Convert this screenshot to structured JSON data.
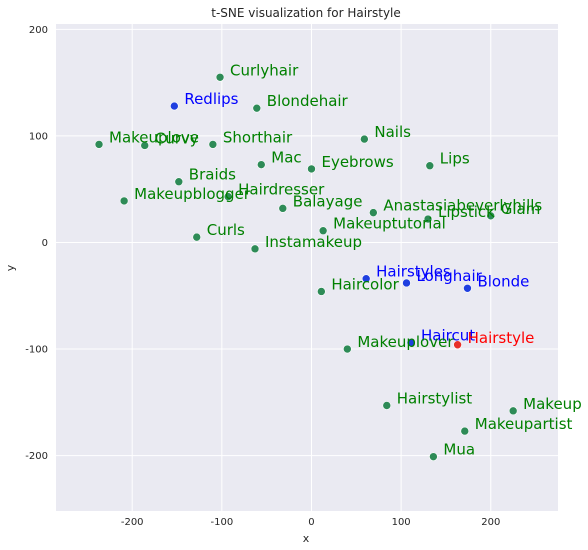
{
  "chart_data": {
    "type": "scatter",
    "title": "t-SNE visualization for Hairstyle",
    "xlabel": "x",
    "ylabel": "y",
    "xlim": [
      -285,
      275
    ],
    "ylim": [
      -252,
      205
    ],
    "xticks": [
      -200,
      -100,
      0,
      100,
      200
    ],
    "yticks": [
      -200,
      -100,
      0,
      100,
      200
    ],
    "grid": true,
    "colors": {
      "background": "#eaeaf2",
      "grid": "#ffffff",
      "neighbor_point": "#2e8b57",
      "neighbor_label": "#008000",
      "highlight_point": "#1f3fe0",
      "highlight_label": "#0000ff",
      "query_point": "#e8312a",
      "query_label": "#ff0000"
    },
    "points": [
      {
        "label": "Curlyhair",
        "x": -102,
        "y": 155,
        "group": "neighbor"
      },
      {
        "label": "Redlips",
        "x": -153,
        "y": 128,
        "group": "highlight"
      },
      {
        "label": "Blondehair",
        "x": -61,
        "y": 126,
        "group": "neighbor"
      },
      {
        "label": "Makeuplove",
        "x": -237,
        "y": 92,
        "group": "neighbor"
      },
      {
        "label": "Curvy",
        "x": -186,
        "y": 91,
        "group": "neighbor"
      },
      {
        "label": "Shorthair",
        "x": -110,
        "y": 92,
        "group": "neighbor"
      },
      {
        "label": "Nails",
        "x": 59,
        "y": 97,
        "group": "neighbor"
      },
      {
        "label": "Mac",
        "x": -56,
        "y": 73,
        "group": "neighbor"
      },
      {
        "label": "Eyebrows",
        "x": 0,
        "y": 69,
        "group": "neighbor"
      },
      {
        "label": "Lips",
        "x": 132,
        "y": 72,
        "group": "neighbor"
      },
      {
        "label": "Braids",
        "x": -148,
        "y": 57,
        "group": "neighbor"
      },
      {
        "label": "Hairdresser",
        "x": -93,
        "y": 43,
        "group": "neighbor"
      },
      {
        "label": "Makeupblogger",
        "x": -209,
        "y": 39,
        "group": "neighbor"
      },
      {
        "label": "Balayage",
        "x": -32,
        "y": 32,
        "group": "neighbor"
      },
      {
        "label": "Anastasiabeverlyhills",
        "x": 69,
        "y": 28,
        "group": "neighbor"
      },
      {
        "label": "Lipstick",
        "x": 130,
        "y": 22,
        "group": "neighbor"
      },
      {
        "label": "Glam",
        "x": 200,
        "y": 25,
        "group": "neighbor"
      },
      {
        "label": "Makeuptutorial",
        "x": 13,
        "y": 11,
        "group": "neighbor"
      },
      {
        "label": "Curls",
        "x": -128,
        "y": 5,
        "group": "neighbor"
      },
      {
        "label": "Instamakeup",
        "x": -63,
        "y": -6,
        "group": "neighbor"
      },
      {
        "label": "Hairstyles",
        "x": 61,
        "y": -34,
        "group": "highlight"
      },
      {
        "label": "Longhair",
        "x": 106,
        "y": -38,
        "group": "highlight"
      },
      {
        "label": "Blonde",
        "x": 174,
        "y": -43,
        "group": "highlight"
      },
      {
        "label": "Haircolor",
        "x": 11,
        "y": -46,
        "group": "neighbor"
      },
      {
        "label": "Haircut",
        "x": 111,
        "y": -94,
        "group": "highlight"
      },
      {
        "label": "Hairstyle",
        "x": 163,
        "y": -96,
        "group": "query"
      },
      {
        "label": "Makeuplover",
        "x": 40,
        "y": -100,
        "group": "neighbor"
      },
      {
        "label": "Hairstylist",
        "x": 84,
        "y": -153,
        "group": "neighbor"
      },
      {
        "label": "Makeup",
        "x": 225,
        "y": -158,
        "group": "neighbor"
      },
      {
        "label": "Makeupartist",
        "x": 171,
        "y": -177,
        "group": "neighbor"
      },
      {
        "label": "Mua",
        "x": 136,
        "y": -201,
        "group": "neighbor"
      }
    ]
  }
}
